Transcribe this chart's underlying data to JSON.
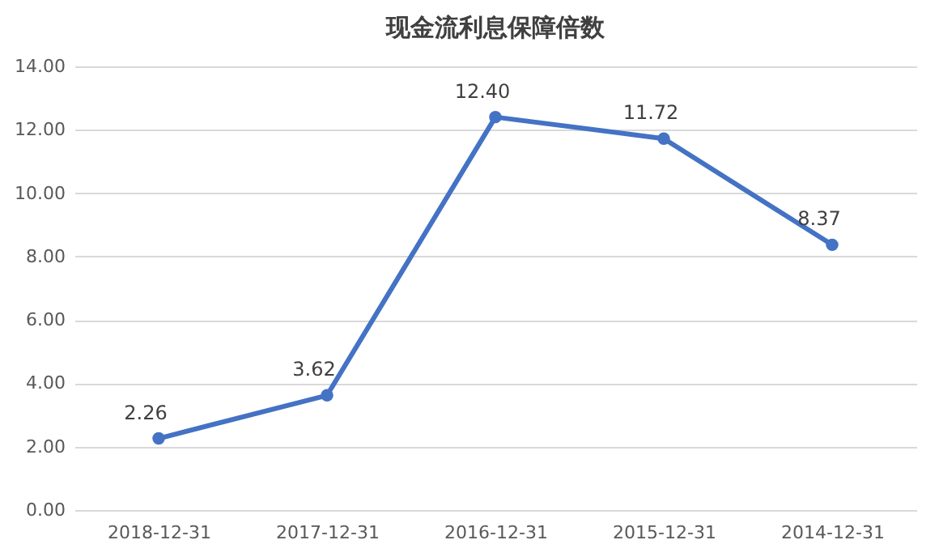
{
  "chart_data": {
    "type": "line",
    "title": "现金流利息保障倍数",
    "categories": [
      "2018-12-31",
      "2017-12-31",
      "2016-12-31",
      "2015-12-31",
      "2014-12-31"
    ],
    "series": [
      {
        "color": "#4472c4",
        "values": [
          2.26,
          3.62,
          12.4,
          11.72,
          8.37
        ],
        "value_labels": [
          "2.26",
          "3.62",
          "12.40",
          "11.72",
          "8.37"
        ]
      }
    ],
    "ylim": [
      0,
      14
    ],
    "yticks": [
      {
        "value": 0,
        "label": "0.00"
      },
      {
        "value": 2,
        "label": "2.00"
      },
      {
        "value": 4,
        "label": "4.00"
      },
      {
        "value": 6,
        "label": "6.00"
      },
      {
        "value": 8,
        "label": "8.00"
      },
      {
        "value": 10,
        "label": "10.00"
      },
      {
        "value": 12,
        "label": "12.00"
      },
      {
        "value": 14,
        "label": "14.00"
      }
    ],
    "grid": "y",
    "marker": "circle",
    "line_style": "solid"
  }
}
